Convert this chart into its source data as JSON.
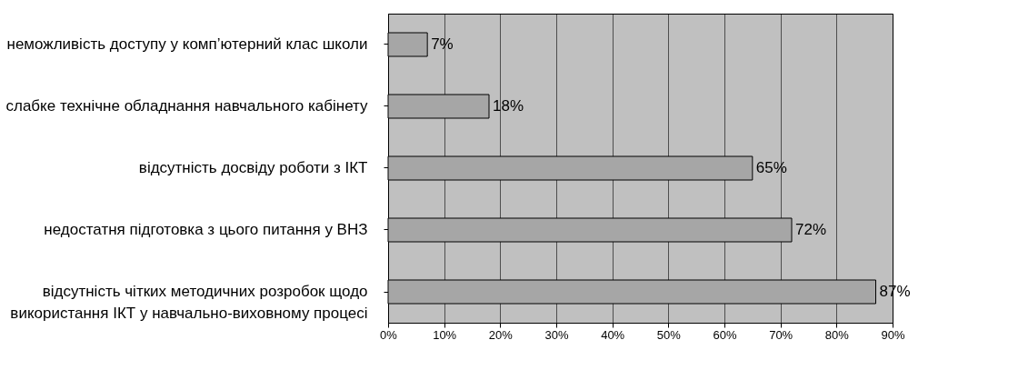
{
  "chart_data": {
    "type": "bar",
    "orientation": "horizontal",
    "categories": [
      "неможливість доступу у комп’ютерний клас школи",
      "слабке технічне обладнання навчального кабінету",
      "відсутність досвіду роботи з ІКТ",
      "недостатня підготовка з цього питання у ВНЗ",
      "відсутність чітких методичних розробок щодо використання ІКТ у навчально-виховному процесі"
    ],
    "values": [
      7,
      18,
      65,
      72,
      87
    ],
    "value_labels": [
      "7%",
      "18%",
      "65%",
      "72%",
      "87%"
    ],
    "color": "#a6a6a6",
    "xlim": [
      0,
      90
    ],
    "xticks": [
      {
        "value": 0,
        "label": "0%"
      },
      {
        "value": 10,
        "label": "10%"
      },
      {
        "value": 20,
        "label": "20%"
      },
      {
        "value": 30,
        "label": "30%"
      },
      {
        "value": 40,
        "label": "40%"
      },
      {
        "value": 50,
        "label": "50%"
      },
      {
        "value": 60,
        "label": "60%"
      },
      {
        "value": 70,
        "label": "70%"
      },
      {
        "value": 80,
        "label": "80%"
      },
      {
        "value": 90,
        "label": "90%"
      }
    ],
    "grid": "x"
  }
}
